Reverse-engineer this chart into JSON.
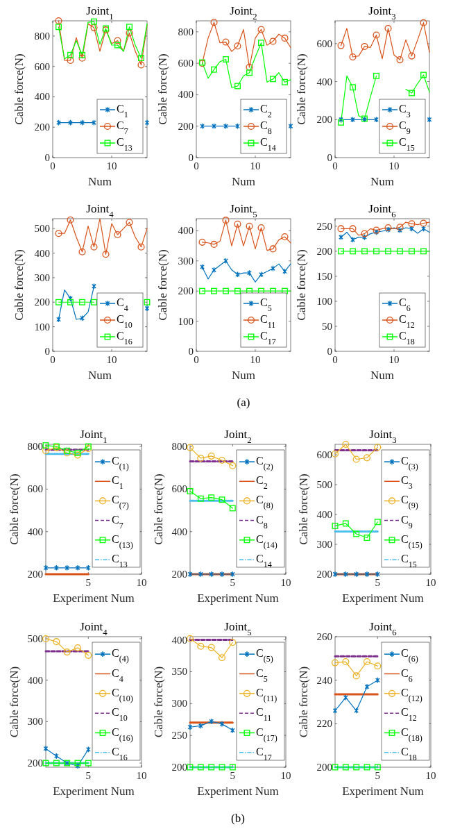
{
  "chart_data": [
    {
      "type": "line",
      "title": "Joint$_{1}$",
      "xlabel": "Num",
      "ylabel": "Cable force(N)",
      "x": [
        1,
        2,
        3,
        4,
        5,
        6,
        7,
        8,
        9,
        10,
        11,
        12,
        13,
        14,
        15,
        16
      ],
      "xlim": [
        0,
        16
      ],
      "xticks": [
        0,
        10
      ],
      "ylim": [
        0,
        900
      ],
      "yticks": [
        0,
        200,
        400,
        600,
        800
      ],
      "legend": "bottom right",
      "series": [
        {
          "name": "C$_{1}$",
          "color": "#0072bd",
          "marker": "cross",
          "values": [
            230,
            230,
            230,
            230,
            230,
            230,
            230,
            null,
            null,
            null,
            null,
            null,
            null,
            null,
            null,
            230
          ]
        },
        {
          "name": "C$_{7}$",
          "color": "#d95319",
          "marker": "circle",
          "values": [
            900,
            640,
            640,
            790,
            655,
            880,
            855,
            700,
            840,
            750,
            770,
            700,
            820,
            700,
            610,
            870
          ]
        },
        {
          "name": "C$_{13}$",
          "color": "#00ff00",
          "marker": "square",
          "values": [
            860,
            650,
            675,
            770,
            675,
            890,
            895,
            745,
            850,
            740,
            740,
            700,
            860,
            740,
            655,
            880
          ]
        }
      ]
    },
    {
      "type": "line",
      "title": "Joint$_{2}$",
      "xlabel": "Num",
      "ylabel": "Cable force(N)",
      "x": [
        1,
        2,
        3,
        4,
        5,
        6,
        7,
        8,
        9,
        10,
        11,
        12,
        13,
        14,
        15,
        16
      ],
      "xlim": [
        0,
        16
      ],
      "xticks": [
        0,
        10
      ],
      "ylim": [
        0,
        870
      ],
      "yticks": [
        0,
        200,
        400,
        600,
        800
      ],
      "legend": "bottom right",
      "series": [
        {
          "name": "C$_{2}$",
          "color": "#0072bd",
          "marker": "cross",
          "values": [
            200,
            200,
            200,
            200,
            200,
            200,
            200,
            null,
            null,
            null,
            null,
            null,
            null,
            null,
            null,
            200
          ]
        },
        {
          "name": "C$_{8}$",
          "color": "#d95319",
          "marker": "circle",
          "values": [
            600,
            760,
            860,
            730,
            735,
            675,
            710,
            815,
            575,
            760,
            815,
            715,
            740,
            785,
            760,
            700
          ]
        },
        {
          "name": "C$_{14}$",
          "color": "#00ff00",
          "marker": "square",
          "values": [
            605,
            505,
            560,
            610,
            625,
            445,
            455,
            520,
            540,
            640,
            730,
            480,
            500,
            540,
            480,
            495
          ]
        }
      ]
    },
    {
      "type": "line",
      "title": "Joint$_{3}$",
      "xlabel": "Num",
      "ylabel": "Cable force(N)",
      "x": [
        1,
        2,
        3,
        4,
        5,
        6,
        7,
        8,
        9,
        10,
        11,
        12,
        13,
        14,
        15,
        16
      ],
      "xlim": [
        0,
        16
      ],
      "xticks": [
        0,
        10
      ],
      "ylim": [
        0,
        720
      ],
      "yticks": [
        0,
        200,
        400,
        600
      ],
      "legend": "bottom right",
      "series": [
        {
          "name": "C$_{3}$",
          "color": "#0072bd",
          "marker": "cross",
          "values": [
            200,
            200,
            200,
            200,
            200,
            200,
            200,
            null,
            null,
            null,
            null,
            null,
            null,
            null,
            null,
            200
          ]
        },
        {
          "name": "C$_{9}$",
          "color": "#d95319",
          "marker": "circle",
          "values": [
            590,
            680,
            530,
            535,
            585,
            580,
            645,
            520,
            680,
            540,
            515,
            620,
            535,
            620,
            710,
            555
          ]
        },
        {
          "name": "C$_{15}$",
          "color": "#00ff00",
          "marker": "square",
          "values": [
            185,
            430,
            370,
            220,
            205,
            320,
            430,
            null,
            null,
            null,
            null,
            360,
            340,
            390,
            435,
            345
          ]
        }
      ]
    },
    {
      "type": "line",
      "title": "Joint$_{4}$",
      "xlabel": "Num",
      "ylabel": "Cable force(N)",
      "x": [
        1,
        2,
        3,
        4,
        5,
        6,
        7,
        8,
        9,
        10,
        11,
        12,
        13,
        14,
        15,
        16
      ],
      "xlim": [
        0,
        16
      ],
      "xticks": [
        0,
        10
      ],
      "ylim": [
        0,
        540
      ],
      "yticks": [
        0,
        100,
        200,
        300,
        400,
        500
      ],
      "legend": "bottom right",
      "series": [
        {
          "name": "C$_{4}$",
          "color": "#0072bd",
          "marker": "cross",
          "values": [
            130,
            250,
            215,
            130,
            135,
            160,
            265,
            null,
            null,
            null,
            null,
            null,
            null,
            null,
            null,
            175
          ]
        },
        {
          "name": "C$_{10}$",
          "color": "#d95319",
          "marker": "circle",
          "values": [
            480,
            480,
            535,
            465,
            405,
            510,
            425,
            540,
            395,
            520,
            475,
            500,
            525,
            465,
            425,
            500
          ]
        },
        {
          "name": "C$_{16}$",
          "color": "#00ff00",
          "marker": "square",
          "values": [
            200,
            200,
            200,
            200,
            200,
            200,
            200,
            null,
            null,
            null,
            null,
            null,
            null,
            null,
            null,
            200
          ]
        }
      ]
    },
    {
      "type": "line",
      "title": "Joint$_{5}$",
      "xlabel": "Num",
      "ylabel": "Cable force(N)",
      "x": [
        1,
        2,
        3,
        4,
        5,
        6,
        7,
        8,
        9,
        10,
        11,
        12,
        13,
        14,
        15,
        16
      ],
      "xlim": [
        0,
        16
      ],
      "xticks": [
        0,
        10
      ],
      "ylim": [
        0,
        440
      ],
      "yticks": [
        0,
        100,
        200,
        300,
        400
      ],
      "legend": "bottom right",
      "annotations": [
        "(a)"
      ],
      "series": [
        {
          "name": "C$_{5}$",
          "color": "#0072bd",
          "marker": "cross",
          "values": [
            280,
            240,
            270,
            285,
            300,
            270,
            255,
            260,
            260,
            230,
            255,
            265,
            275,
            290,
            265,
            290
          ]
        },
        {
          "name": "C$_{11}$",
          "color": "#d95319",
          "marker": "circle",
          "values": [
            362,
            360,
            355,
            365,
            435,
            350,
            422,
            350,
            415,
            340,
            410,
            335,
            340,
            370,
            380,
            360
          ]
        },
        {
          "name": "C$_{17}$",
          "color": "#00ff00",
          "marker": "square",
          "values": [
            200,
            200,
            200,
            200,
            200,
            200,
            200,
            200,
            200,
            200,
            200,
            200,
            200,
            200,
            200,
            200
          ]
        }
      ]
    },
    {
      "type": "line",
      "title": "Joint$_{6}$",
      "xlabel": "Num",
      "ylabel": "Cable force(N)",
      "x": [
        1,
        2,
        3,
        4,
        5,
        6,
        7,
        8,
        9,
        10,
        11,
        12,
        13,
        14,
        15,
        16
      ],
      "xlim": [
        0,
        16
      ],
      "xticks": [
        0,
        10
      ],
      "ylim": [
        0,
        265
      ],
      "yticks": [
        0,
        50,
        100,
        150,
        200,
        250
      ],
      "legend": "bottom right",
      "series": [
        {
          "name": "C$_{6}$",
          "color": "#0072bd",
          "marker": "cross",
          "values": [
            228,
            238,
            223,
            228,
            228,
            235,
            238,
            240,
            243,
            247,
            242,
            247,
            245,
            236,
            245,
            238
          ]
        },
        {
          "name": "C$_{12}$",
          "color": "#d95319",
          "marker": "circle",
          "values": [
            245,
            245,
            245,
            232,
            235,
            245,
            242,
            245,
            247,
            245,
            248,
            258,
            255,
            253,
            256,
            258
          ]
        },
        {
          "name": "C$_{18}$",
          "color": "#00ff00",
          "marker": "square",
          "values": [
            200,
            200,
            200,
            200,
            200,
            200,
            200,
            200,
            200,
            200,
            200,
            200,
            200,
            200,
            200,
            200
          ]
        }
      ]
    },
    {
      "type": "line",
      "title": "Joint$_{1}$",
      "xlabel": "Experiment Num",
      "ylabel": "Cable force(N)",
      "x": [
        1,
        2,
        3,
        4,
        5
      ],
      "xlim": [
        1,
        10
      ],
      "xticks": [
        5,
        10
      ],
      "ylim": [
        200,
        810
      ],
      "yticks": [
        200,
        400,
        600,
        800
      ],
      "legend": "right",
      "series": [
        {
          "name": "C$_{(1)}$",
          "color": "#0072bd",
          "marker": "cross",
          "values": [
            230,
            230,
            230,
            230,
            230
          ]
        },
        {
          "name": "C$_{1}$",
          "color": "#d95319",
          "marker": "none",
          "line_style": "solid",
          "values": [
            200,
            200,
            200,
            200,
            200
          ]
        },
        {
          "name": "C$_{(7)}$",
          "color": "#edb120",
          "marker": "circle",
          "values": [
            780,
            795,
            770,
            760,
            790
          ]
        },
        {
          "name": "C$_{7}$",
          "color": "#7e2f8e",
          "marker": "none",
          "line_style": "dashed",
          "values": [
            785,
            785,
            785,
            785,
            785
          ]
        },
        {
          "name": "C$_{(13)}$",
          "color": "#00ff00",
          "marker": "square",
          "values": [
            805,
            800,
            780,
            770,
            800
          ]
        },
        {
          "name": "C$_{13}$",
          "color": "#4dbeee",
          "marker": "none",
          "line_style": "dotted",
          "values": [
            765,
            765,
            765,
            765,
            765
          ]
        }
      ]
    },
    {
      "type": "line",
      "title": "Joint$_{2}$",
      "xlabel": "Experiment Num",
      "ylabel": "Cable force(N)",
      "x": [
        1,
        2,
        3,
        4,
        5
      ],
      "xlim": [
        1,
        10
      ],
      "xticks": [
        5,
        10
      ],
      "ylim": [
        200,
        810
      ],
      "yticks": [
        200,
        400,
        600,
        800
      ],
      "legend": "right",
      "series": [
        {
          "name": "C$_{(2)}$",
          "color": "#0072bd",
          "marker": "cross",
          "values": [
            200,
            200,
            200,
            200,
            200
          ]
        },
        {
          "name": "C$_{2}$",
          "color": "#d95319",
          "marker": "none",
          "line_style": "solid",
          "values": [
            200,
            200,
            200,
            200,
            200
          ]
        },
        {
          "name": "C$_{(8)}$",
          "color": "#edb120",
          "marker": "circle",
          "values": [
            795,
            745,
            755,
            735,
            710
          ]
        },
        {
          "name": "C$_{8}$",
          "color": "#7e2f8e",
          "marker": "none",
          "line_style": "dashed",
          "values": [
            730,
            730,
            730,
            730,
            730
          ]
        },
        {
          "name": "C$_{(14)}$",
          "color": "#00ff00",
          "marker": "square",
          "values": [
            590,
            555,
            560,
            550,
            510
          ]
        },
        {
          "name": "C$_{14}$",
          "color": "#4dbeee",
          "marker": "none",
          "line_style": "dotted",
          "values": [
            545,
            545,
            545,
            545,
            545
          ]
        }
      ]
    },
    {
      "type": "line",
      "title": "Joint$_{3}$",
      "xlabel": "Experiment Num",
      "ylabel": "Cable force(N)",
      "x": [
        1,
        2,
        3,
        4,
        5
      ],
      "xlim": [
        1,
        10
      ],
      "xticks": [
        5,
        10
      ],
      "ylim": [
        200,
        635
      ],
      "yticks": [
        200,
        300,
        400,
        500,
        600
      ],
      "legend": "right",
      "series": [
        {
          "name": "C$_{(3)}$",
          "color": "#0072bd",
          "marker": "cross",
          "values": [
            200,
            200,
            200,
            200,
            200
          ]
        },
        {
          "name": "C$_{3}$",
          "color": "#d95319",
          "marker": "none",
          "line_style": "solid",
          "values": [
            200,
            200,
            200,
            200,
            200
          ]
        },
        {
          "name": "C$_{(9)}$",
          "color": "#edb120",
          "marker": "circle",
          "values": [
            603,
            635,
            585,
            590,
            625
          ]
        },
        {
          "name": "C$_{9}$",
          "color": "#7e2f8e",
          "marker": "none",
          "line_style": "dashed",
          "values": [
            615,
            615,
            615,
            615,
            615
          ]
        },
        {
          "name": "C$_{(15)}$",
          "color": "#00ff00",
          "marker": "square",
          "values": [
            362,
            370,
            335,
            322,
            375
          ]
        },
        {
          "name": "C$_{15}$",
          "color": "#4dbeee",
          "marker": "none",
          "line_style": "dotted",
          "values": [
            343,
            343,
            343,
            343,
            343
          ]
        }
      ]
    },
    {
      "type": "line",
      "title": "Joint$_{4}$",
      "xlabel": "Experiment Num",
      "ylabel": "Cable force(N)",
      "x": [
        1,
        2,
        3,
        4,
        5
      ],
      "xlim": [
        1,
        10
      ],
      "xticks": [
        5,
        10
      ],
      "ylim": [
        190,
        505
      ],
      "yticks": [
        200,
        300,
        400,
        500
      ],
      "legend": "right",
      "series": [
        {
          "name": "C$_{(4)}$",
          "color": "#0072bd",
          "marker": "cross",
          "values": [
            235,
            217,
            200,
            193,
            233
          ]
        },
        {
          "name": "C$_{4}$",
          "color": "#d95319",
          "marker": "none",
          "line_style": "solid",
          "values": [
            null,
            null,
            null,
            null,
            null
          ]
        },
        {
          "name": "C$_{(10)}$",
          "color": "#edb120",
          "marker": "circle",
          "values": [
            500,
            493,
            468,
            478,
            460
          ]
        },
        {
          "name": "C$_{10}$",
          "color": "#7e2f8e",
          "marker": "none",
          "line_style": "dashed",
          "values": [
            470,
            470,
            470,
            470,
            470
          ]
        },
        {
          "name": "C$_{(16)}$",
          "color": "#00ff00",
          "marker": "square",
          "values": [
            200,
            200,
            200,
            200,
            200
          ]
        },
        {
          "name": "C$_{16}$",
          "color": "#4dbeee",
          "marker": "none",
          "line_style": "dotted",
          "values": [
            200,
            200,
            200,
            200,
            200
          ]
        }
      ]
    },
    {
      "type": "line",
      "title": "Joint$_{5}$",
      "xlabel": "Experiment Num",
      "ylabel": "Cable force(N)",
      "x": [
        1,
        2,
        3,
        4,
        5
      ],
      "xlim": [
        1,
        10
      ],
      "xticks": [
        5,
        10
      ],
      "ylim": [
        200,
        405
      ],
      "yticks": [
        200,
        250,
        300,
        350,
        400
      ],
      "legend": "right",
      "annotations": [
        "(b)"
      ],
      "series": [
        {
          "name": "C$_{(5)}$",
          "color": "#0072bd",
          "marker": "cross",
          "values": [
            263,
            265,
            272,
            268,
            258
          ]
        },
        {
          "name": "C$_{5}$",
          "color": "#d95319",
          "marker": "none",
          "line_style": "solid",
          "values": [
            270,
            270,
            270,
            270,
            270
          ]
        },
        {
          "name": "C$_{(11)}$",
          "color": "#edb120",
          "marker": "circle",
          "values": [
            402,
            390,
            388,
            372,
            396
          ]
        },
        {
          "name": "C$_{11}$",
          "color": "#7e2f8e",
          "marker": "none",
          "line_style": "dashed",
          "values": [
            400,
            400,
            400,
            400,
            400
          ]
        },
        {
          "name": "C$_{(17)}$",
          "color": "#00ff00",
          "marker": "square",
          "values": [
            200,
            200,
            200,
            200,
            200
          ]
        },
        {
          "name": "C$_{17}$",
          "color": "#4dbeee",
          "marker": "none",
          "line_style": "dotted",
          "values": [
            200,
            200,
            200,
            200,
            200
          ]
        }
      ]
    },
    {
      "type": "line",
      "title": "Joint$_{6}$",
      "xlabel": "Experiment Num",
      "ylabel": "Cable force(N)",
      "x": [
        1,
        2,
        3,
        4,
        5
      ],
      "xlim": [
        1,
        10
      ],
      "xticks": [
        5,
        10
      ],
      "ylim": [
        200,
        260
      ],
      "yticks": [
        200,
        220,
        240,
        260
      ],
      "legend": "right",
      "series": [
        {
          "name": "C$_{(6)}$",
          "color": "#0072bd",
          "marker": "cross",
          "values": [
            226,
            232,
            226,
            237,
            240
          ]
        },
        {
          "name": "C$_{6}$",
          "color": "#d95319",
          "marker": "none",
          "line_style": "solid",
          "values": [
            233.5,
            233.5,
            233.5,
            233.5,
            233.5
          ]
        },
        {
          "name": "C$_{(12)}$",
          "color": "#edb120",
          "marker": "circle",
          "values": [
            248,
            248.5,
            242,
            248.5,
            246.5
          ]
        },
        {
          "name": "C$_{12}$",
          "color": "#7e2f8e",
          "marker": "none",
          "line_style": "dashed",
          "values": [
            251,
            251,
            251,
            251,
            251
          ]
        },
        {
          "name": "C$_{(18)}$",
          "color": "#00ff00",
          "marker": "square",
          "values": [
            200,
            200,
            200,
            200,
            200
          ]
        },
        {
          "name": "C$_{18}$",
          "color": "#4dbeee",
          "marker": "none",
          "line_style": "dotted",
          "values": [
            200,
            200,
            200,
            200,
            200
          ]
        }
      ]
    }
  ]
}
